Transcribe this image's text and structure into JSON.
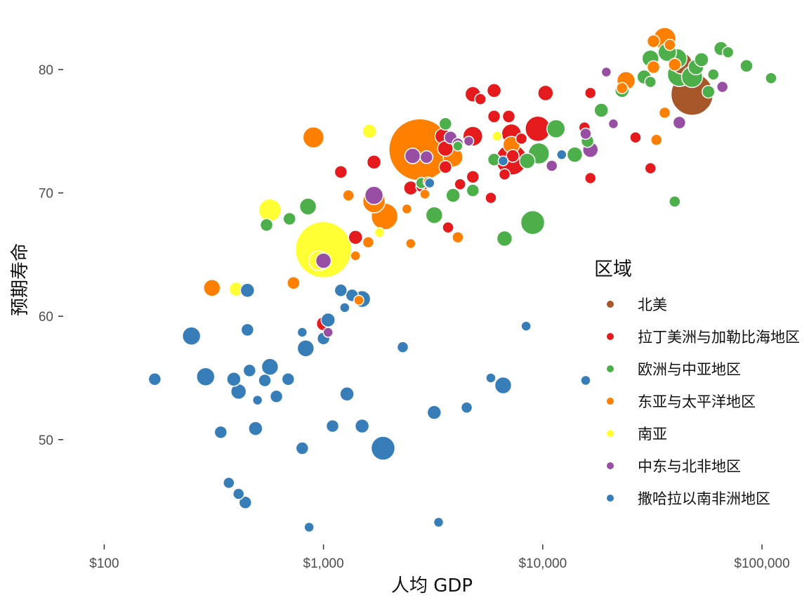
{
  "chart_data": {
    "type": "scatter",
    "title": "",
    "xlabel": "人均 GDP",
    "ylabel": "预期寿命",
    "x_scale": "log",
    "xlim": [
      65,
      150000
    ],
    "ylim": [
      41.5,
      84.5
    ],
    "x_ticks": [
      {
        "value": 100,
        "label": "$100"
      },
      {
        "value": 1000,
        "label": "$1,000"
      },
      {
        "value": 10000,
        "label": "$10,000"
      },
      {
        "value": 100000,
        "label": "$100,000"
      }
    ],
    "y_ticks": [
      {
        "value": 50,
        "label": "50"
      },
      {
        "value": 60,
        "label": "60"
      },
      {
        "value": 70,
        "label": "70"
      },
      {
        "value": 80,
        "label": "80"
      }
    ],
    "grid": false,
    "legend": {
      "title": "区域",
      "placement": "right",
      "entries": [
        {
          "name": "北美",
          "color": "#a65628"
        },
        {
          "name": "拉丁美洲与加勒比海地区",
          "color": "#e41a1c"
        },
        {
          "name": "欧洲与中亚地区",
          "color": "#4daf4a"
        },
        {
          "name": "东亚与太平洋地区",
          "color": "#ff7f00"
        },
        {
          "name": "南亚",
          "color": "#ffff33"
        },
        {
          "name": "中东与北非地区",
          "color": "#984ea3"
        },
        {
          "name": "撒哈拉以南非洲地区",
          "color": "#377eb8"
        }
      ]
    },
    "series": [
      {
        "name": "北美",
        "color": "#a65628",
        "points": [
          [
            48000,
            78.0,
            30
          ],
          [
            43000,
            80.5,
            15
          ]
        ]
      },
      {
        "name": "拉丁美洲与加勒比海地区",
        "color": "#e41a1c",
        "points": [
          [
            4800,
            78.0,
            11
          ],
          [
            6000,
            78.3,
            10
          ],
          [
            10300,
            78.1,
            11
          ],
          [
            16500,
            78.1,
            8
          ],
          [
            5200,
            77.6,
            8
          ],
          [
            6000,
            76.2,
            9
          ],
          [
            7000,
            76.2,
            9
          ],
          [
            9500,
            75.2,
            18
          ],
          [
            15500,
            75.3,
            8
          ],
          [
            26500,
            74.5,
            8
          ],
          [
            3500,
            74.6,
            11
          ],
          [
            4800,
            74.6,
            14
          ],
          [
            7200,
            74.8,
            14
          ],
          [
            8000,
            74.4,
            8
          ],
          [
            3600,
            73.6,
            11
          ],
          [
            7200,
            72.7,
            22
          ],
          [
            7300,
            73.0,
            9
          ],
          [
            6700,
            71.5,
            8
          ],
          [
            3600,
            72.1,
            9
          ],
          [
            1700,
            72.5,
            10
          ],
          [
            1200,
            71.7,
            9
          ],
          [
            4800,
            71.3,
            9
          ],
          [
            16500,
            71.2,
            8
          ],
          [
            31000,
            72.0,
            8
          ],
          [
            2500,
            70.4,
            10
          ],
          [
            2800,
            70.5,
            8
          ],
          [
            4200,
            70.7,
            8
          ],
          [
            5800,
            69.6,
            8
          ],
          [
            3700,
            67.2,
            8
          ],
          [
            1400,
            66.4,
            10
          ],
          [
            1000,
            59.4,
            10
          ]
        ]
      },
      {
        "name": "欧洲与中亚地区",
        "color": "#4daf4a",
        "points": [
          [
            65000,
            81.7,
            10
          ],
          [
            70000,
            81.4,
            8
          ],
          [
            37000,
            81.4,
            13
          ],
          [
            31000,
            80.9,
            12
          ],
          [
            41000,
            80.9,
            14
          ],
          [
            53000,
            80.8,
            10
          ],
          [
            50000,
            80.2,
            11
          ],
          [
            42000,
            79.6,
            17
          ],
          [
            29000,
            79.4,
            10
          ],
          [
            48000,
            79.4,
            15
          ],
          [
            60000,
            79.6,
            8
          ],
          [
            85000,
            80.3,
            9
          ],
          [
            110000,
            79.3,
            8
          ],
          [
            31000,
            79.0,
            8
          ],
          [
            23000,
            78.3,
            10
          ],
          [
            57000,
            78.2,
            9
          ],
          [
            18500,
            76.7,
            10
          ],
          [
            11500,
            75.2,
            13
          ],
          [
            3600,
            75.6,
            9
          ],
          [
            16000,
            74.2,
            9
          ],
          [
            9600,
            73.2,
            15
          ],
          [
            14000,
            73.1,
            11
          ],
          [
            4100,
            73.8,
            7
          ],
          [
            6000,
            72.7,
            9
          ],
          [
            8500,
            72.6,
            11
          ],
          [
            2800,
            70.8,
            8
          ],
          [
            3900,
            69.8,
            10
          ],
          [
            4800,
            70.2,
            9
          ],
          [
            3200,
            68.2,
            12
          ],
          [
            40000,
            69.3,
            8
          ],
          [
            850,
            68.9,
            12
          ],
          [
            700,
            67.9,
            9
          ],
          [
            550,
            67.4,
            9
          ],
          [
            9000,
            67.6,
            17
          ],
          [
            6700,
            66.3,
            11
          ]
        ]
      },
      {
        "name": "东亚与太平洋地区",
        "color": "#ff7f00",
        "points": [
          [
            36000,
            82.5,
            16
          ],
          [
            32000,
            82.3,
            9
          ],
          [
            38000,
            82.0,
            8
          ],
          [
            32000,
            80.2,
            9
          ],
          [
            40000,
            80.4,
            9
          ],
          [
            24000,
            79.1,
            13
          ],
          [
            23000,
            78.5,
            8
          ],
          [
            36000,
            76.5,
            8
          ],
          [
            33000,
            74.3,
            8
          ],
          [
            2750,
            73.5,
            44
          ],
          [
            3900,
            72.9,
            14
          ],
          [
            7200,
            73.9,
            12
          ],
          [
            900,
            74.5,
            15
          ],
          [
            1700,
            69.3,
            16
          ],
          [
            1900,
            68.1,
            19
          ],
          [
            1300,
            69.8,
            8
          ],
          [
            2900,
            69.9,
            7
          ],
          [
            3000,
            70.9,
            7
          ],
          [
            2400,
            68.7,
            7
          ],
          [
            4100,
            66.4,
            8
          ],
          [
            1600,
            66.0,
            8
          ],
          [
            2500,
            65.9,
            7
          ],
          [
            1400,
            64.9,
            7
          ],
          [
            730,
            62.7,
            9
          ],
          [
            310,
            62.3,
            12
          ],
          [
            1450,
            61.3,
            7
          ]
        ]
      },
      {
        "name": "南亚",
        "color": "#ffff33",
        "points": [
          [
            1620,
            75.0,
            10
          ],
          [
            6200,
            74.6,
            7
          ],
          [
            1000,
            65.4,
            40
          ],
          [
            950,
            64.5,
            14
          ],
          [
            570,
            68.6,
            16
          ],
          [
            400,
            62.2,
            10
          ],
          [
            1800,
            66.8,
            7
          ]
        ]
      },
      {
        "name": "中东与北非地区",
        "color": "#984ea3",
        "points": [
          [
            19500,
            79.8,
            7
          ],
          [
            66000,
            78.6,
            8
          ],
          [
            21000,
            75.6,
            7
          ],
          [
            42000,
            75.7,
            9
          ],
          [
            15700,
            74.8,
            8
          ],
          [
            16500,
            73.5,
            11
          ],
          [
            11000,
            72.2,
            8
          ],
          [
            2950,
            72.9,
            9
          ],
          [
            2550,
            73.0,
            11
          ],
          [
            3800,
            74.5,
            9
          ],
          [
            4100,
            74.0,
            8
          ],
          [
            4600,
            74.2,
            7
          ],
          [
            1700,
            69.8,
            13
          ],
          [
            1000,
            64.5,
            11
          ],
          [
            1050,
            58.7,
            7
          ]
        ]
      },
      {
        "name": "撒哈拉以南非洲地区",
        "color": "#377eb8",
        "points": [
          [
            1500,
            61.4,
            12
          ],
          [
            1350,
            61.7,
            9
          ],
          [
            1200,
            62.1,
            9
          ],
          [
            450,
            62.1,
            10
          ],
          [
            1250,
            60.7,
            7
          ],
          [
            1050,
            59.7,
            10
          ],
          [
            1000,
            58.2,
            9
          ],
          [
            800,
            58.7,
            7
          ],
          [
            450,
            58.9,
            9
          ],
          [
            250,
            58.4,
            13
          ],
          [
            830,
            57.4,
            12
          ],
          [
            2300,
            57.5,
            8
          ],
          [
            8400,
            59.2,
            7
          ],
          [
            170,
            54.9,
            9
          ],
          [
            290,
            55.1,
            13
          ],
          [
            390,
            54.9,
            10
          ],
          [
            460,
            55.6,
            9
          ],
          [
            570,
            55.9,
            12
          ],
          [
            540,
            54.8,
            9
          ],
          [
            690,
            54.9,
            9
          ],
          [
            410,
            53.9,
            11
          ],
          [
            500,
            53.2,
            7
          ],
          [
            610,
            53.5,
            9
          ],
          [
            1280,
            53.7,
            10
          ],
          [
            5800,
            55.0,
            7
          ],
          [
            6600,
            54.4,
            12
          ],
          [
            15700,
            54.8,
            7
          ],
          [
            3200,
            52.2,
            10
          ],
          [
            4500,
            52.6,
            8
          ],
          [
            340,
            50.6,
            9
          ],
          [
            490,
            50.9,
            10
          ],
          [
            1100,
            51.1,
            9
          ],
          [
            1500,
            51.1,
            10
          ],
          [
            800,
            49.3,
            9
          ],
          [
            1870,
            49.3,
            17
          ],
          [
            370,
            46.5,
            8
          ],
          [
            410,
            45.6,
            8
          ],
          [
            440,
            44.9,
            9
          ],
          [
            860,
            42.9,
            7
          ],
          [
            3350,
            43.3,
            7
          ],
          [
            12200,
            73.1,
            7
          ],
          [
            6600,
            72.6,
            7
          ],
          [
            3050,
            70.8,
            7
          ]
        ]
      }
    ]
  }
}
